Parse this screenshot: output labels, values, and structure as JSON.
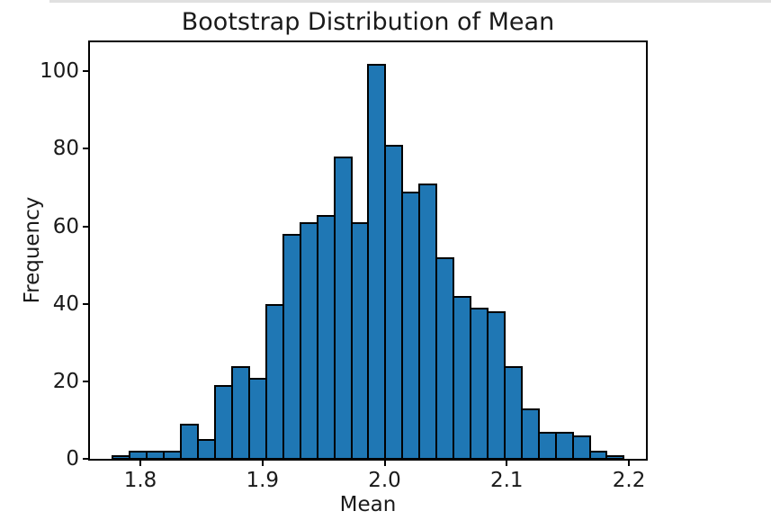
{
  "page": {
    "top_strip_color": "#e0e0e0",
    "background_color": "#ffffff",
    "text_color": "#1a1a1a"
  },
  "chart_data": {
    "type": "bar",
    "subtype": "histogram",
    "title": "Bootstrap Distribution of Mean",
    "xlabel": "Mean",
    "ylabel": "Frequency",
    "bin_start": 1.77753,
    "bin_width": 0.013944,
    "n_bins": 30,
    "values": [
      1,
      2,
      2,
      2,
      9,
      5,
      19,
      24,
      21,
      40,
      58,
      61,
      63,
      78,
      61,
      102,
      81,
      69,
      71,
      52,
      42,
      39,
      38,
      24,
      13,
      7,
      7,
      6,
      2,
      1
    ],
    "total_samples": 1000,
    "xlim": [
      1.75875,
      2.21395
    ],
    "ylim": [
      0,
      107.63
    ],
    "x_ticks": [
      {
        "value": 1.8,
        "label": "1.8"
      },
      {
        "value": 1.9,
        "label": "1.9"
      },
      {
        "value": 2.0,
        "label": "2.0"
      },
      {
        "value": 2.1,
        "label": "2.1"
      },
      {
        "value": 2.2,
        "label": "2.2"
      }
    ],
    "y_ticks": [
      {
        "value": 0,
        "label": "0"
      },
      {
        "value": 20,
        "label": "20"
      },
      {
        "value": 40,
        "label": "40"
      },
      {
        "value": 60,
        "label": "60"
      },
      {
        "value": 80,
        "label": "80"
      },
      {
        "value": 100,
        "label": "100"
      }
    ],
    "bar_color": "#1f77b4",
    "bar_edge_color": "#000000",
    "grid": false,
    "legend": null
  }
}
